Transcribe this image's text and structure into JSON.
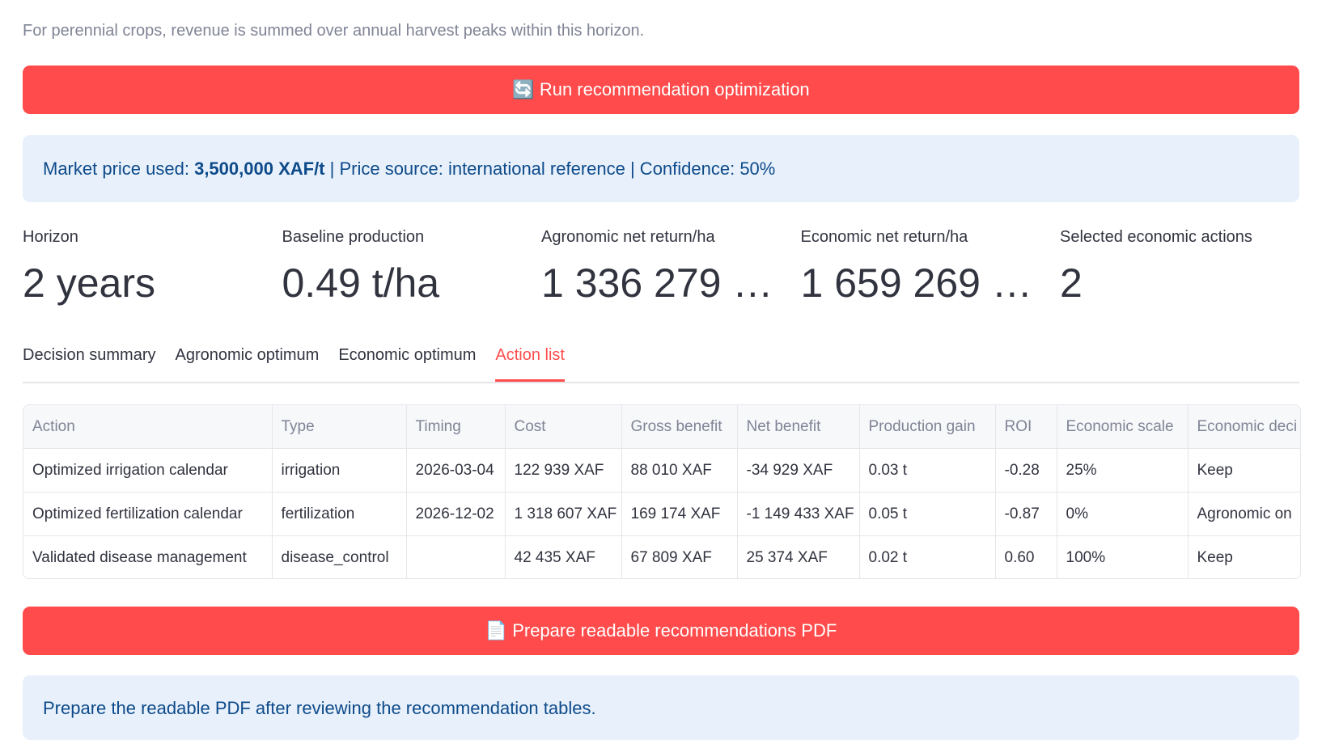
{
  "caption": "For perennial crops, revenue is summed over annual harvest peaks within this horizon.",
  "run_button": "🔄 Run recommendation optimization",
  "price_info": {
    "prefix": "Market price used: ",
    "price": "3,500,000 XAF/t",
    "suffix": " | Price source: international reference | Confidence: 50%"
  },
  "metrics": [
    {
      "label": "Horizon",
      "value": "2 years"
    },
    {
      "label": "Baseline production",
      "value": "0.49 t/ha"
    },
    {
      "label": "Agronomic net return/ha",
      "value": "1 336 279 …"
    },
    {
      "label": "Economic net return/ha",
      "value": "1 659 269 …"
    },
    {
      "label": "Selected economic actions",
      "value": "2"
    }
  ],
  "tabs": [
    "Decision summary",
    "Agronomic optimum",
    "Economic optimum",
    "Action list"
  ],
  "table": {
    "columns": [
      "Action",
      "Type",
      "Timing",
      "Cost",
      "Gross benefit",
      "Net benefit",
      "Production gain",
      "ROI",
      "Economic scale",
      "Economic deci"
    ],
    "rows": [
      [
        "Optimized irrigation calendar",
        "irrigation",
        "2026-03-04",
        "122 939 XAF",
        "88 010 XAF",
        "-34 929 XAF",
        "0.03 t",
        "-0.28",
        "25%",
        "Keep"
      ],
      [
        "Optimized fertilization calendar",
        "fertilization",
        "2026-12-02",
        "1 318 607 XAF",
        "169 174 XAF",
        "-1 149 433 XAF",
        "0.05 t",
        "-0.87",
        "0%",
        "Agronomic on"
      ],
      [
        "Validated disease management",
        "disease_control",
        null,
        "42 435 XAF",
        "67 809 XAF",
        "25 374 XAF",
        "0.02 t",
        "0.60",
        "100%",
        "Keep"
      ]
    ]
  },
  "pdf_button": "📄 Prepare readable recommendations PDF",
  "pdf_info": "Prepare the readable PDF after reviewing the recommendation tables."
}
